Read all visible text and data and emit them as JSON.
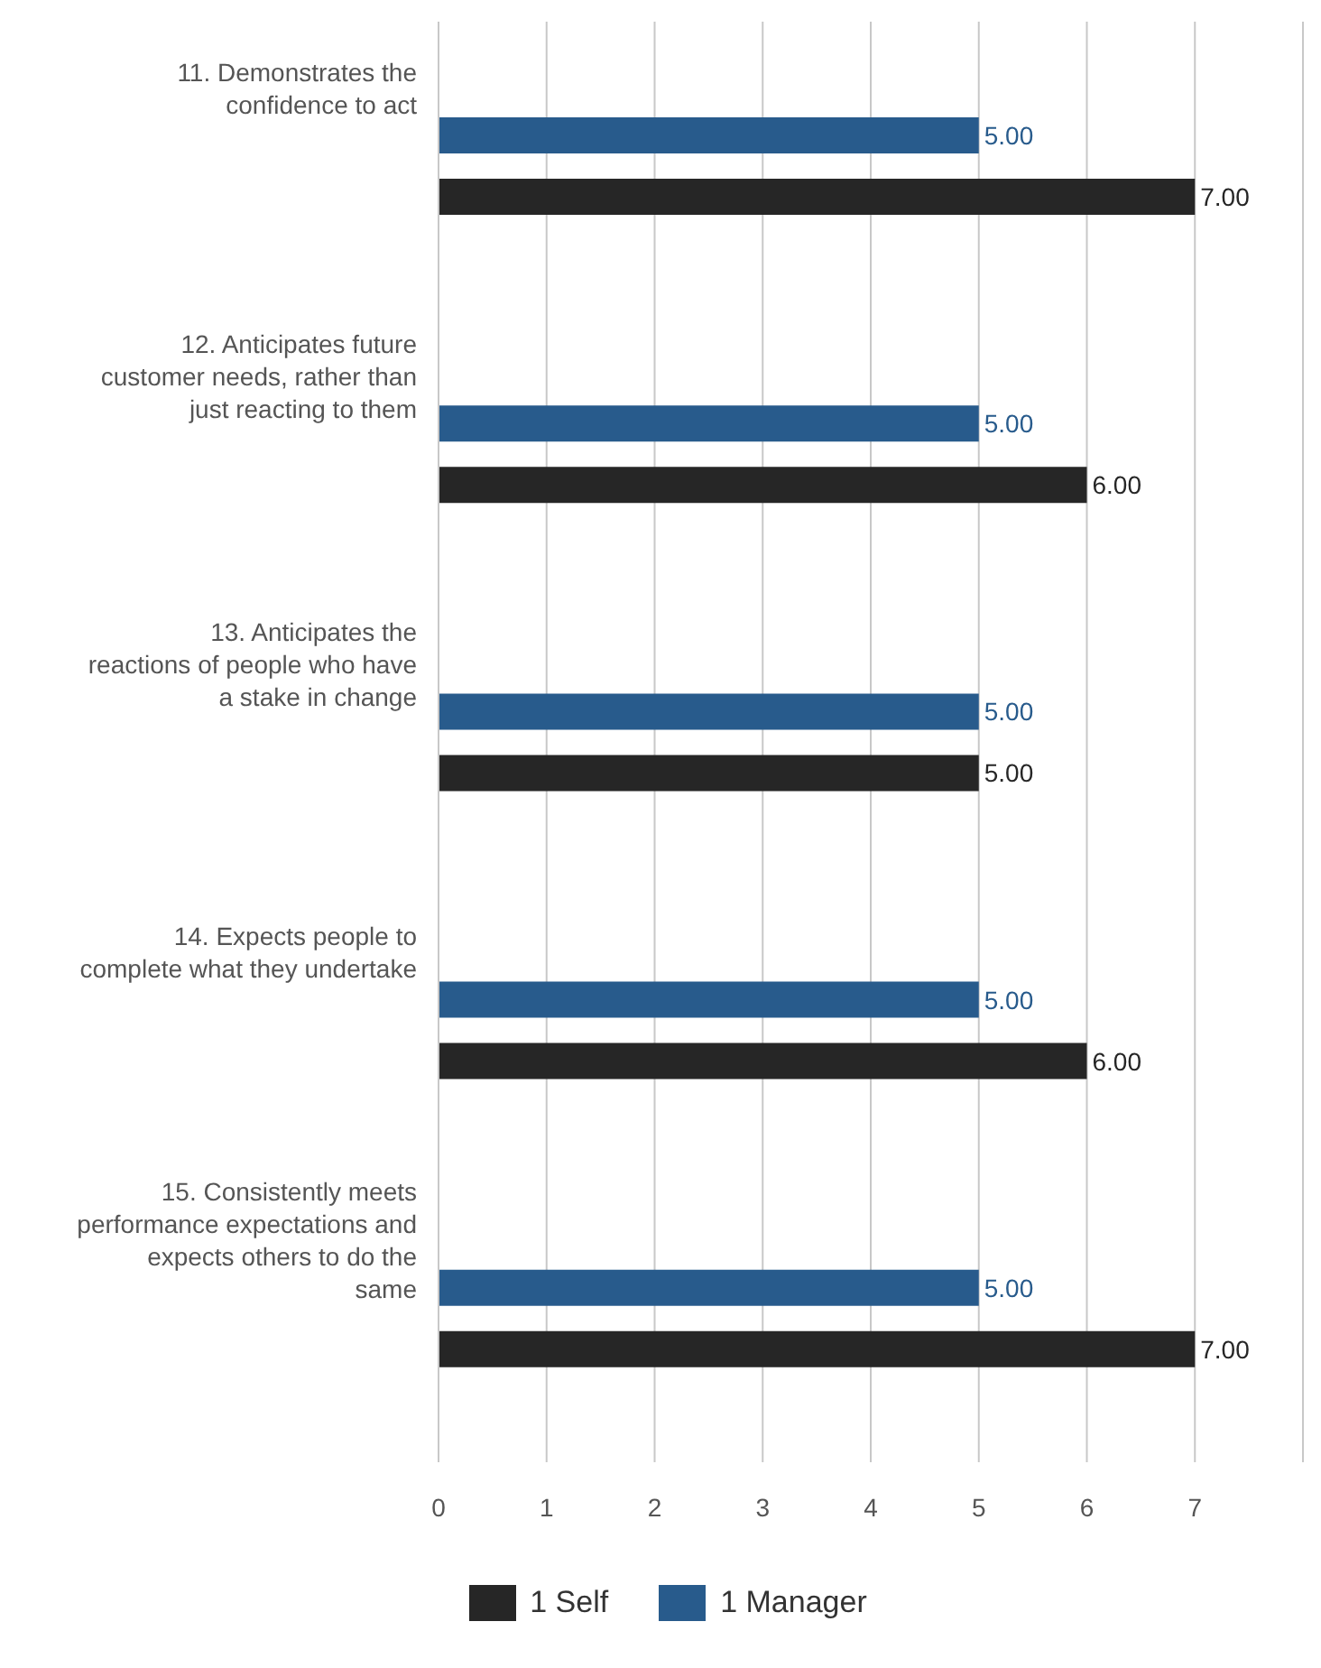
{
  "chart_data": {
    "type": "bar",
    "orientation": "horizontal",
    "categories": [
      "11. Demonstrates the confidence to act",
      "12. Anticipates future customer needs, rather than just reacting to them",
      "13. Anticipates the reactions of people who have a stake in change",
      "14. Expects people to complete what they undertake",
      "15. Consistently meets performance expectations and expects others to do the same"
    ],
    "series": [
      {
        "name": "1 Manager",
        "color": "#285b8c",
        "values": [
          5,
          5,
          5,
          5,
          5
        ],
        "value_labels": [
          "5.00",
          "5.00",
          "5.00",
          "5.00",
          "5.00"
        ]
      },
      {
        "name": "1 Self",
        "color": "#262626",
        "values": [
          7,
          6,
          5,
          6,
          7
        ],
        "value_labels": [
          "7.00",
          "6.00",
          "5.00",
          "6.00",
          "7.00"
        ]
      }
    ],
    "xlim": [
      0,
      8
    ],
    "xticks": [
      0,
      1,
      2,
      3,
      4,
      5,
      6,
      7,
      {
        "value": 8,
        "label": null
      }
    ],
    "grid": "x",
    "legend": "bottom"
  }
}
